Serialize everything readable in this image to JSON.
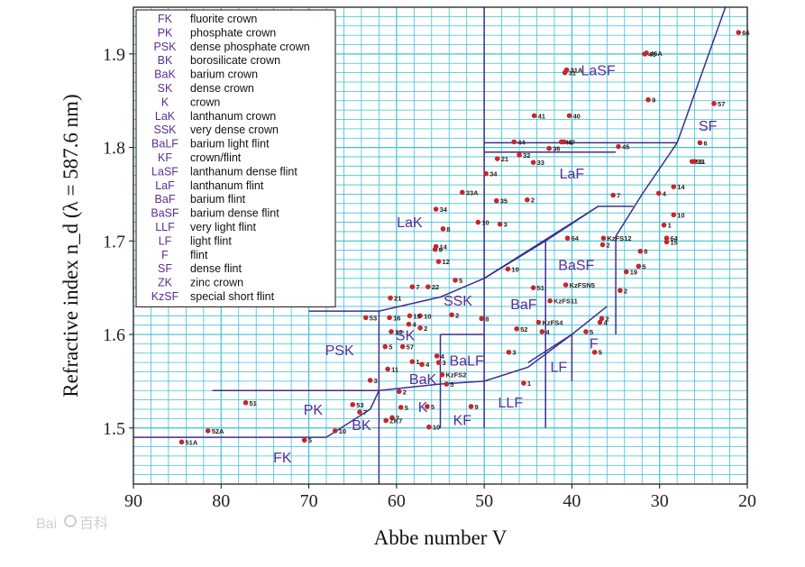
{
  "chart_data": {
    "type": "scatter",
    "xlabel": "Abbe number V",
    "ylabel": "Refractive index n_d (λ = 587.6 nm)",
    "xlim": [
      90,
      20
    ],
    "ylim": [
      1.44,
      1.95
    ],
    "x_ticks": [
      90,
      80,
      70,
      60,
      50,
      40,
      30,
      20
    ],
    "y_ticks": [
      1.5,
      1.6,
      1.7,
      1.8,
      1.9
    ],
    "x_tick_labels": [
      "90",
      "80",
      "70",
      "60",
      "50",
      "40",
      "30",
      "20"
    ],
    "y_tick_labels": [
      "1.5",
      "1.6",
      "1.7",
      "1.8",
      "1.9"
    ],
    "grid": true,
    "legend_position": "top-left",
    "legend": [
      {
        "code": "FK",
        "name": "fluorite crown"
      },
      {
        "code": "PK",
        "name": "phosphate crown"
      },
      {
        "code": "PSK",
        "name": "dense phosphate crown"
      },
      {
        "code": "BK",
        "name": "borosilicate crown"
      },
      {
        "code": "BaK",
        "name": "barium crown"
      },
      {
        "code": "SK",
        "name": "dense crown"
      },
      {
        "code": "K",
        "name": "crown"
      },
      {
        "code": "LaK",
        "name": "lanthanum crown"
      },
      {
        "code": "SSK",
        "name": "very dense crown"
      },
      {
        "code": "BaLF",
        "name": "barium light flint"
      },
      {
        "code": "KF",
        "name": "crown/flint"
      },
      {
        "code": "LaSF",
        "name": "lanthanum dense flint"
      },
      {
        "code": "LaF",
        "name": "lanthanum flint"
      },
      {
        "code": "BaF",
        "name": "barium flint"
      },
      {
        "code": "BaSF",
        "name": "barium dense flint"
      },
      {
        "code": "LLF",
        "name": "very light flint"
      },
      {
        "code": "LF",
        "name": "light flint"
      },
      {
        "code": "F",
        "name": "flint"
      },
      {
        "code": "SF",
        "name": "dense flint"
      },
      {
        "code": "ZK",
        "name": "zinc crown"
      },
      {
        "code": "KzSF",
        "name": "special short flint"
      }
    ],
    "regions": [
      {
        "label": "FK",
        "x": 73,
        "y": 1.463
      },
      {
        "label": "PK",
        "x": 69.5,
        "y": 1.514
      },
      {
        "label": "PSK",
        "x": 66.5,
        "y": 1.578
      },
      {
        "label": "BK",
        "x": 64,
        "y": 1.498
      },
      {
        "label": "BaK",
        "x": 57,
        "y": 1.547
      },
      {
        "label": "SK",
        "x": 59,
        "y": 1.594
      },
      {
        "label": "K",
        "x": 57,
        "y": 1.517
      },
      {
        "label": "LaK",
        "x": 58.5,
        "y": 1.715
      },
      {
        "label": "SSK",
        "x": 53,
        "y": 1.631
      },
      {
        "label": "BaLF",
        "x": 52,
        "y": 1.567
      },
      {
        "label": "KF",
        "x": 52.5,
        "y": 1.503
      },
      {
        "label": "LaSF",
        "x": 37,
        "y": 1.877
      },
      {
        "label": "LaF",
        "x": 40,
        "y": 1.767
      },
      {
        "label": "BaF",
        "x": 45.5,
        "y": 1.627
      },
      {
        "label": "BaSF",
        "x": 39.5,
        "y": 1.669
      },
      {
        "label": "LLF",
        "x": 47,
        "y": 1.522
      },
      {
        "label": "LF",
        "x": 41.5,
        "y": 1.56
      },
      {
        "label": "F",
        "x": 37.5,
        "y": 1.585
      },
      {
        "label": "SF",
        "x": 24.5,
        "y": 1.818
      }
    ],
    "points": [
      {
        "x": 84.5,
        "y": 1.485,
        "label": "51A"
      },
      {
        "x": 81.5,
        "y": 1.497,
        "label": "52A"
      },
      {
        "x": 77.2,
        "y": 1.527,
        "label": "51"
      },
      {
        "x": 70.5,
        "y": 1.487,
        "label": "5"
      },
      {
        "x": 67,
        "y": 1.497,
        "label": "10"
      },
      {
        "x": 65,
        "y": 1.525,
        "label": "53"
      },
      {
        "x": 64.2,
        "y": 1.517,
        "label": "7"
      },
      {
        "x": 63,
        "y": 1.551,
        "label": "3"
      },
      {
        "x": 61.2,
        "y": 1.508,
        "label": "ZK7"
      },
      {
        "x": 60.5,
        "y": 1.511,
        "label": "7"
      },
      {
        "x": 59.5,
        "y": 1.522,
        "label": "5"
      },
      {
        "x": 59.7,
        "y": 1.539,
        "label": "2"
      },
      {
        "x": 56.3,
        "y": 1.501,
        "label": "10"
      },
      {
        "x": 56.5,
        "y": 1.523,
        "label": "5"
      },
      {
        "x": 61,
        "y": 1.563,
        "label": "11"
      },
      {
        "x": 61.3,
        "y": 1.587,
        "label": "5"
      },
      {
        "x": 59.3,
        "y": 1.587,
        "label": "57"
      },
      {
        "x": 60.6,
        "y": 1.603,
        "label": "14"
      },
      {
        "x": 63.5,
        "y": 1.618,
        "label": "53"
      },
      {
        "x": 60.8,
        "y": 1.618,
        "label": "16"
      },
      {
        "x": 58.5,
        "y": 1.62,
        "label": "15"
      },
      {
        "x": 58.6,
        "y": 1.611,
        "label": "4"
      },
      {
        "x": 57.3,
        "y": 1.62,
        "label": "10"
      },
      {
        "x": 57.3,
        "y": 1.607,
        "label": "2"
      },
      {
        "x": 58.2,
        "y": 1.571,
        "label": "1"
      },
      {
        "x": 57.1,
        "y": 1.568,
        "label": "4"
      },
      {
        "x": 60.7,
        "y": 1.639,
        "label": "21"
      },
      {
        "x": 58.2,
        "y": 1.651,
        "label": "7"
      },
      {
        "x": 56.4,
        "y": 1.651,
        "label": "22"
      },
      {
        "x": 53.3,
        "y": 1.658,
        "label": "5"
      },
      {
        "x": 55.4,
        "y": 1.577,
        "label": "4"
      },
      {
        "x": 55.2,
        "y": 1.57,
        "label": "3"
      },
      {
        "x": 54.8,
        "y": 1.557,
        "label": "KzFS2"
      },
      {
        "x": 54.3,
        "y": 1.547,
        "label": "5"
      },
      {
        "x": 53.7,
        "y": 1.621,
        "label": "2"
      },
      {
        "x": 50.3,
        "y": 1.617,
        "label": "8"
      },
      {
        "x": 51.5,
        "y": 1.523,
        "label": "9"
      },
      {
        "x": 45.5,
        "y": 1.548,
        "label": "1"
      },
      {
        "x": 47.2,
        "y": 1.581,
        "label": "3"
      },
      {
        "x": 46.3,
        "y": 1.606,
        "label": "52"
      },
      {
        "x": 43.8,
        "y": 1.613,
        "label": "KzFS4"
      },
      {
        "x": 43.4,
        "y": 1.603,
        "label": "4"
      },
      {
        "x": 42.5,
        "y": 1.636,
        "label": "KzFS11"
      },
      {
        "x": 44.4,
        "y": 1.65,
        "label": "51"
      },
      {
        "x": 47.3,
        "y": 1.67,
        "label": "10"
      },
      {
        "x": 40.7,
        "y": 1.653,
        "label": "KzFSN5"
      },
      {
        "x": 38.4,
        "y": 1.603,
        "label": "5"
      },
      {
        "x": 36.8,
        "y": 1.613,
        "label": "4"
      },
      {
        "x": 36.6,
        "y": 1.617,
        "label": "2"
      },
      {
        "x": 37.4,
        "y": 1.581,
        "label": "5"
      },
      {
        "x": 34.5,
        "y": 1.647,
        "label": "2"
      },
      {
        "x": 33.8,
        "y": 1.667,
        "label": "19"
      },
      {
        "x": 32.4,
        "y": 1.673,
        "label": "5"
      },
      {
        "x": 36.5,
        "y": 1.696,
        "label": "2"
      },
      {
        "x": 40.5,
        "y": 1.703,
        "label": "64"
      },
      {
        "x": 36.4,
        "y": 1.703,
        "label": "KzFS12"
      },
      {
        "x": 32.2,
        "y": 1.689,
        "label": "8"
      },
      {
        "x": 29.2,
        "y": 1.703,
        "label": "64"
      },
      {
        "x": 29.2,
        "y": 1.699,
        "label": "15"
      },
      {
        "x": 29.5,
        "y": 1.717,
        "label": "1"
      },
      {
        "x": 28.4,
        "y": 1.728,
        "label": "10"
      },
      {
        "x": 35.3,
        "y": 1.749,
        "label": "7"
      },
      {
        "x": 30.1,
        "y": 1.751,
        "label": "4"
      },
      {
        "x": 28.4,
        "y": 1.758,
        "label": "14"
      },
      {
        "x": 26.3,
        "y": 1.785,
        "label": "56"
      },
      {
        "x": 26,
        "y": 1.785,
        "label": "11"
      },
      {
        "x": 25.4,
        "y": 1.805,
        "label": "6"
      },
      {
        "x": 23.8,
        "y": 1.847,
        "label": "57"
      },
      {
        "x": 21,
        "y": 1.923,
        "label": "66"
      },
      {
        "x": 31.7,
        "y": 1.9,
        "label": "46"
      },
      {
        "x": 31.5,
        "y": 1.901,
        "label": "46A"
      },
      {
        "x": 31.3,
        "y": 1.851,
        "label": "9"
      },
      {
        "x": 40.8,
        "y": 1.88,
        "label": "31"
      },
      {
        "x": 40.6,
        "y": 1.883,
        "label": "31A"
      },
      {
        "x": 40.3,
        "y": 1.834,
        "label": "40"
      },
      {
        "x": 44.3,
        "y": 1.834,
        "label": "41"
      },
      {
        "x": 34.7,
        "y": 1.801,
        "label": "45"
      },
      {
        "x": 40.9,
        "y": 1.806,
        "label": "47"
      },
      {
        "x": 41.2,
        "y": 1.806,
        "label": "43"
      },
      {
        "x": 42.6,
        "y": 1.799,
        "label": "36"
      },
      {
        "x": 46.6,
        "y": 1.806,
        "label": "44"
      },
      {
        "x": 46,
        "y": 1.792,
        "label": "32"
      },
      {
        "x": 44.4,
        "y": 1.784,
        "label": "33"
      },
      {
        "x": 48.5,
        "y": 1.788,
        "label": "21"
      },
      {
        "x": 49.8,
        "y": 1.772,
        "label": "34"
      },
      {
        "x": 52.5,
        "y": 1.752,
        "label": "33A"
      },
      {
        "x": 48.6,
        "y": 1.743,
        "label": "35"
      },
      {
        "x": 45.1,
        "y": 1.744,
        "label": "2"
      },
      {
        "x": 55.5,
        "y": 1.734,
        "label": "34"
      },
      {
        "x": 50.7,
        "y": 1.72,
        "label": "10"
      },
      {
        "x": 48.2,
        "y": 1.718,
        "label": "3"
      },
      {
        "x": 54.7,
        "y": 1.713,
        "label": "8"
      },
      {
        "x": 55.5,
        "y": 1.694,
        "label": "14"
      },
      {
        "x": 55.6,
        "y": 1.691,
        "label": "9"
      },
      {
        "x": 55.2,
        "y": 1.678,
        "label": "12"
      }
    ]
  }
}
